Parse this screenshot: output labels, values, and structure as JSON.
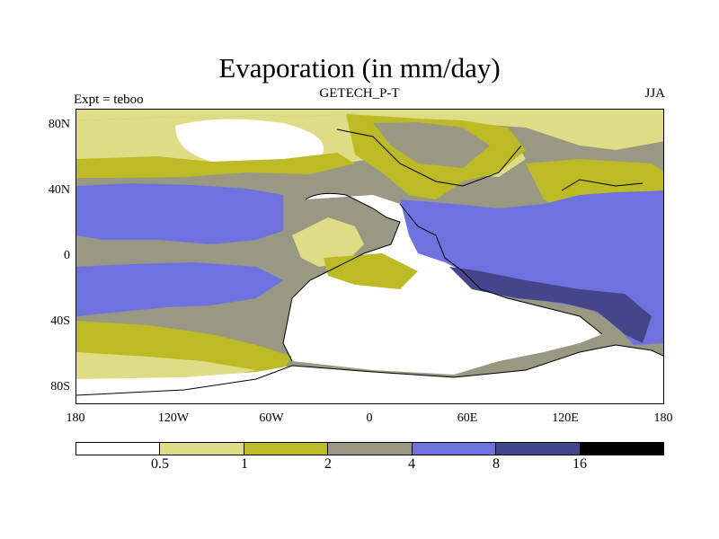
{
  "title": "Evaporation (in mm/day)",
  "subtitle": "GETECH_P-T",
  "left_string": "Expt = teboo",
  "right_string": "JJA",
  "y_ticks": [
    "80N",
    "40N",
    "0",
    "40S",
    "80S"
  ],
  "x_ticks": [
    "180",
    "120W",
    "60W",
    "0",
    "60E",
    "120E",
    "180"
  ],
  "colorbar": {
    "colors": [
      "#ffffff",
      "#dedd85",
      "#bdbb25",
      "#989883",
      "#6f72de",
      "#45468a",
      "#000000"
    ],
    "labels": [
      "0.5",
      "1",
      "2",
      "4",
      "8",
      "16"
    ]
  },
  "palette": {
    "lt_0_5": "#ffffff",
    "c_0_5_1": "#dedd85",
    "c_1_2": "#bdbb25",
    "c_2_4": "#989883",
    "c_4_8": "#6f72de",
    "c_8_16": "#45468a",
    "gt_16": "#000000"
  }
}
